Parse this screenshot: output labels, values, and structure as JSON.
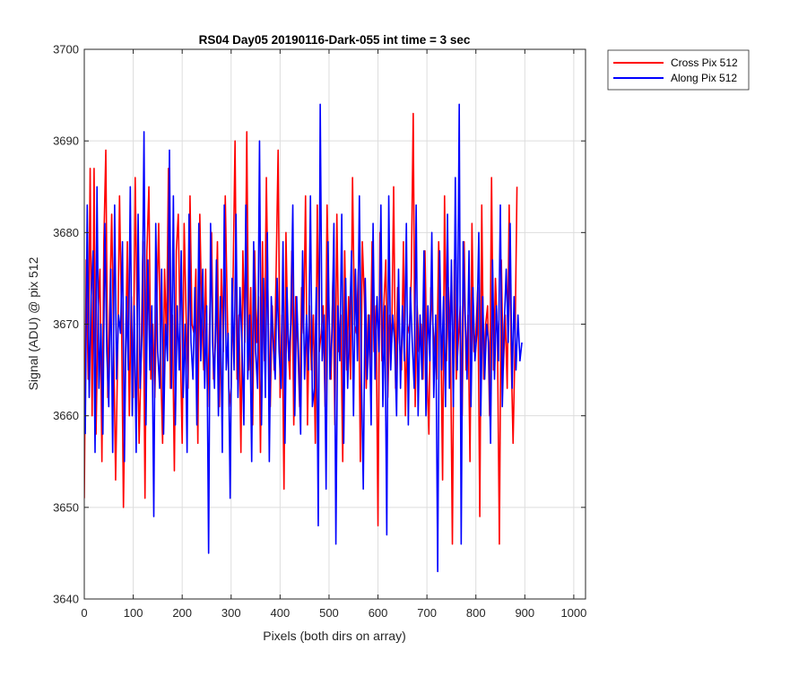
{
  "chart_data": {
    "type": "line",
    "title": "RS04 Day05 20190116-Dark-055 int time = 3 sec",
    "xlabel": "Pixels (both dirs on array)",
    "ylabel": "Signal (ADU) @ pix 512",
    "xlim": [
      0,
      1024
    ],
    "ylim": [
      3640,
      3700
    ],
    "xticks": [
      0,
      100,
      200,
      300,
      400,
      500,
      600,
      700,
      800,
      900,
      1000
    ],
    "yticks": [
      3640,
      3650,
      3660,
      3670,
      3680,
      3690,
      3700
    ],
    "grid": true,
    "legend_position": "outside-top-right",
    "series": [
      {
        "name": "Cross Pix 512",
        "color": "#ff0000",
        "approximate": true,
        "x_start": 0,
        "x_step": 4,
        "y": [
          3651,
          3677,
          3664,
          3687,
          3660,
          3687,
          3658,
          3671,
          3676,
          3655,
          3679,
          3689,
          3662,
          3672,
          3682,
          3668,
          3653,
          3666,
          3684,
          3671,
          3650,
          3666,
          3679,
          3660,
          3673,
          3662,
          3686,
          3671,
          3657,
          3666,
          3679,
          3651,
          3678,
          3685,
          3664,
          3670,
          3662,
          3672,
          3681,
          3666,
          3657,
          3676,
          3668,
          3687,
          3663,
          3671,
          3654,
          3678,
          3682,
          3668,
          3657,
          3681,
          3671,
          3663,
          3684,
          3670,
          3669,
          3676,
          3657,
          3682,
          3671,
          3665,
          3676,
          3661,
          3670,
          3680,
          3664,
          3668,
          3679,
          3661,
          3676,
          3667,
          3684,
          3672,
          3661,
          3663,
          3675,
          3690,
          3664,
          3671,
          3656,
          3678,
          3668,
          3691,
          3665,
          3674,
          3659,
          3678,
          3668,
          3673,
          3656,
          3679,
          3666,
          3686,
          3670,
          3661,
          3672,
          3665,
          3676,
          3689,
          3662,
          3671,
          3652,
          3680,
          3668,
          3664,
          3678,
          3659,
          3673,
          3668,
          3661,
          3674,
          3669,
          3684,
          3659,
          3672,
          3665,
          3671,
          3657,
          3683,
          3667,
          3669,
          3672,
          3661,
          3683,
          3671,
          3664,
          3675,
          3659,
          3682,
          3667,
          3671,
          3655,
          3678,
          3665,
          3673,
          3664,
          3686,
          3670,
          3669,
          3676,
          3655,
          3679,
          3673,
          3663,
          3671,
          3665,
          3679,
          3667,
          3672,
          3648,
          3680,
          3666,
          3672,
          3677,
          3662,
          3671,
          3668,
          3685,
          3663,
          3674,
          3668,
          3665,
          3679,
          3660,
          3670,
          3669,
          3675,
          3693,
          3661,
          3672,
          3667,
          3670,
          3664,
          3678,
          3665,
          3658,
          3674,
          3670,
          3667,
          3664,
          3679,
          3671,
          3653,
          3684,
          3666,
          3674,
          3669,
          3646,
          3677,
          3664,
          3668,
          3672,
          3660,
          3679,
          3665,
          3671,
          3655,
          3681,
          3667,
          3669,
          3674,
          3649,
          3683,
          3664,
          3670,
          3672,
          3660,
          3686,
          3665,
          3675,
          3669,
          3646,
          3677,
          3665,
          3671,
          3663,
          3683,
          3667,
          3657,
          3668,
          3685
        ]
      },
      {
        "name": "Along Pix 512",
        "color": "#0000ff",
        "approximate": true,
        "x_start": 2,
        "x_step": 4,
        "y": [
          3658,
          3683,
          3662,
          3673,
          3678,
          3656,
          3685,
          3663,
          3670,
          3658,
          3681,
          3667,
          3661,
          3676,
          3656,
          3683,
          3664,
          3671,
          3669,
          3679,
          3655,
          3673,
          3665,
          3685,
          3660,
          3672,
          3656,
          3682,
          3663,
          3669,
          3691,
          3659,
          3677,
          3665,
          3672,
          3649,
          3681,
          3667,
          3663,
          3676,
          3658,
          3670,
          3666,
          3689,
          3663,
          3684,
          3659,
          3672,
          3665,
          3678,
          3662,
          3670,
          3656,
          3682,
          3668,
          3664,
          3674,
          3659,
          3681,
          3666,
          3676,
          3663,
          3672,
          3645,
          3681,
          3668,
          3663,
          3677,
          3660,
          3673,
          3656,
          3683,
          3665,
          3669,
          3651,
          3675,
          3665,
          3682,
          3662,
          3674,
          3668,
          3659,
          3683,
          3664,
          3671,
          3655,
          3679,
          3667,
          3663,
          3690,
          3659,
          3675,
          3662,
          3680,
          3655,
          3673,
          3668,
          3664,
          3675,
          3667,
          3663,
          3679,
          3657,
          3674,
          3666,
          3670,
          3683,
          3660,
          3673,
          3666,
          3658,
          3678,
          3664,
          3671,
          3665,
          3684,
          3661,
          3663,
          3674,
          3648,
          3694,
          3666,
          3671,
          3652,
          3679,
          3664,
          3669,
          3681,
          3646,
          3672,
          3666,
          3682,
          3657,
          3675,
          3663,
          3670,
          3678,
          3660,
          3676,
          3666,
          3684,
          3665,
          3652,
          3675,
          3664,
          3671,
          3659,
          3681,
          3664,
          3673,
          3667,
          3683,
          3661,
          3672,
          3647,
          3684,
          3665,
          3671,
          3668,
          3660,
          3676,
          3663,
          3672,
          3666,
          3681,
          3659,
          3674,
          3668,
          3663,
          3683,
          3660,
          3671,
          3664,
          3678,
          3660,
          3672,
          3666,
          3680,
          3662,
          3671,
          3643,
          3678,
          3665,
          3673,
          3661,
          3682,
          3663,
          3677,
          3661,
          3686,
          3665,
          3694,
          3646,
          3679,
          3671,
          3664,
          3678,
          3661,
          3674,
          3666,
          3669,
          3680,
          3660,
          3673,
          3664,
          3670,
          3668,
          3657,
          3677,
          3664,
          3672,
          3666,
          3683,
          3661,
          3670,
          3676,
          3668,
          3681,
          3663,
          3673,
          3665,
          3671,
          3666,
          3668
        ]
      }
    ]
  }
}
